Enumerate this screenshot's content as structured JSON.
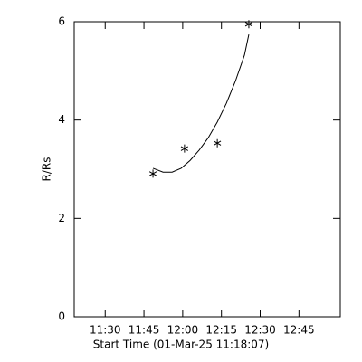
{
  "chart_data": {
    "type": "scatter_fit",
    "x_label": "Start Time (01-Mar-25 11:18:07)",
    "y_label": "R/Rs",
    "xlim": [
      678,
      781
    ],
    "ylim": [
      0,
      6
    ],
    "xticks": [
      {
        "value": 690,
        "label": "11:30"
      },
      {
        "value": 705,
        "label": "11:45"
      },
      {
        "value": 720,
        "label": "12:00"
      },
      {
        "value": 735,
        "label": "12:15"
      },
      {
        "value": 750,
        "label": "12:30"
      },
      {
        "value": 765,
        "label": "12:45"
      }
    ],
    "yticks": [
      0,
      2,
      4,
      6
    ],
    "points": {
      "x": [
        708.5,
        720.7,
        733.4,
        745.6
      ],
      "values": [
        2.91,
        3.42,
        3.53,
        5.95
      ]
    },
    "fit": {
      "x": [
        708.5,
        712.4,
        715.9,
        719.4,
        722.9,
        726.4,
        729.9,
        733.4,
        736.9,
        740.4,
        743.9,
        745.6
      ],
      "values": [
        3.02,
        2.94,
        2.94,
        3.02,
        3.18,
        3.39,
        3.64,
        3.96,
        4.34,
        4.79,
        5.32,
        5.74
      ]
    },
    "color": "#000000"
  }
}
